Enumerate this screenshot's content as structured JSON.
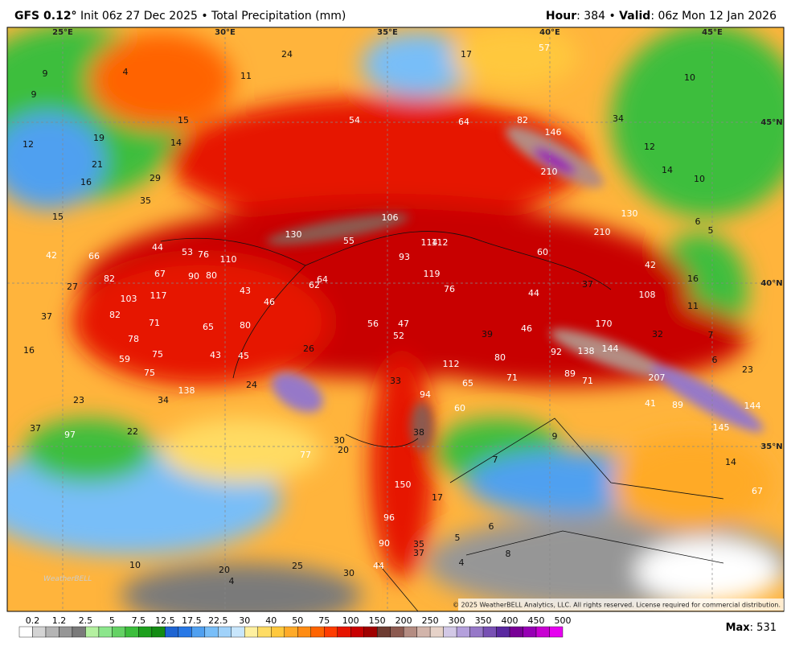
{
  "header": {
    "model": "GFS 0.12°",
    "run": "Init 06z 27 Dec 2025 • Total Precipitation (mm)",
    "hour_label": "Hour",
    "hour_value": ": 384 • ",
    "valid_label": "Valid",
    "valid_value": ": 06z Mon 12 Jan 2026"
  },
  "coordinates": [
    "25°E",
    "30°E",
    "35°E",
    "40°E",
    "45°E",
    "45°N",
    "40°N",
    "35°N"
  ],
  "map_labels": [
    "9",
    "4",
    "24",
    "11",
    "17",
    "57",
    "10",
    "9",
    "54",
    "64",
    "82",
    "146",
    "34",
    "15",
    "12",
    "19",
    "14",
    "12",
    "21",
    "210",
    "14",
    "10",
    "16",
    "29",
    "35",
    "15",
    "106",
    "130",
    "6",
    "130",
    "55",
    "114",
    "112",
    "210",
    "5",
    "44",
    "53",
    "76",
    "110",
    "93",
    "60",
    "42",
    "66",
    "42",
    "67",
    "90",
    "80",
    "119",
    "82",
    "64",
    "62",
    "37",
    "16",
    "27",
    "43",
    "76",
    "44",
    "108",
    "103",
    "117",
    "46",
    "11",
    "37",
    "82",
    "71",
    "65",
    "80",
    "56",
    "47",
    "170",
    "32",
    "7",
    "78",
    "52",
    "39",
    "46",
    "16",
    "26",
    "92",
    "138",
    "144",
    "6",
    "59",
    "75",
    "43",
    "45",
    "80",
    "112",
    "23",
    "75",
    "71",
    "89",
    "207",
    "71",
    "33",
    "65",
    "24",
    "138",
    "94",
    "34",
    "23",
    "41",
    "89",
    "144",
    "60",
    "37",
    "97",
    "22",
    "38",
    "145",
    "9",
    "30",
    "20",
    "77",
    "7",
    "14",
    "150",
    "17",
    "67",
    "96",
    "6",
    "5",
    "90",
    "35",
    "37",
    "8",
    "4",
    "10",
    "25",
    "20",
    "44",
    "30",
    "4"
  ],
  "logo": "WeatherBELL",
  "copyright": "© 2025 WeatherBELL Analytics, LLC. All rights reserved. License required for commercial distribution.",
  "colorbar": {
    "ticks": [
      "0.2",
      "1.2",
      "2.5",
      "5",
      "7.5",
      "12.5",
      "17.5",
      "22.5",
      "30",
      "40",
      "50",
      "75",
      "100",
      "150",
      "200",
      "250",
      "300",
      "350",
      "400",
      "450",
      "500"
    ],
    "colors": [
      "#ffffff",
      "#d4d4d4",
      "#b4b4b4",
      "#969696",
      "#7a7a7a",
      "#b4f0a0",
      "#8ce68c",
      "#64d264",
      "#3cbe3c",
      "#1ea01e",
      "#148c14",
      "#1e64d2",
      "#2878e6",
      "#50a0f0",
      "#78bef8",
      "#a0d2fa",
      "#c8e6fc",
      "#fff0a0",
      "#ffdc64",
      "#ffc83c",
      "#ffaa28",
      "#ff8c14",
      "#ff6400",
      "#ff3c00",
      "#e61400",
      "#c80000",
      "#a00000",
      "#6e3c32",
      "#8c5a50",
      "#b48c82",
      "#d2b4aa",
      "#e6d2c8",
      "#d2c8e6",
      "#b4a0dc",
      "#9678c8",
      "#7850b4",
      "#5a28a0",
      "#780096",
      "#9600b4",
      "#c800d2",
      "#e600f0"
    ]
  },
  "max_label": "Max",
  "max_value": ": 531"
}
